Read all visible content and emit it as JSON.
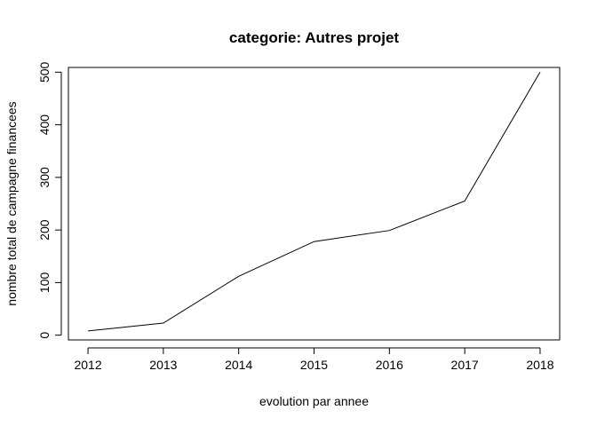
{
  "chart_data": {
    "type": "line",
    "title": "categorie: Autres projet",
    "xlabel": "evolution par annee",
    "ylabel": "nombre total de campagne financees",
    "x": [
      2012,
      2013,
      2014,
      2015,
      2016,
      2017,
      2018
    ],
    "x_ticks": [
      "2012",
      "2013",
      "2014",
      "2015",
      "2016",
      "2017",
      "2018"
    ],
    "y_ticks": [
      "0",
      "100",
      "200",
      "300",
      "400",
      "500"
    ],
    "series": [
      {
        "values": [
          8,
          23,
          112,
          178,
          199,
          255,
          500
        ]
      }
    ],
    "xlim": [
      2011.74,
      2018.26
    ],
    "ylim": [
      -9,
      509
    ],
    "grid": false,
    "line_color": "#000000"
  }
}
